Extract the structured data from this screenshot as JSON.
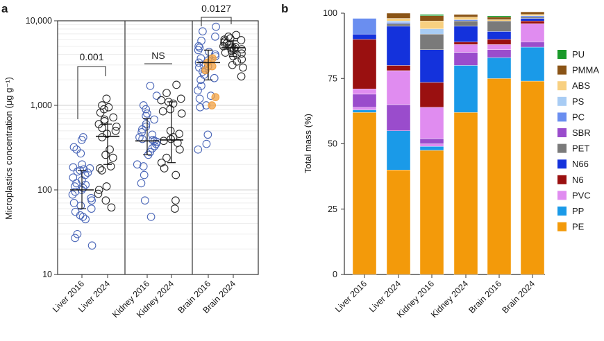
{
  "chart_data": [
    {
      "panel_label": "a",
      "type": "scatter",
      "ylabel": "Microplastics concentration (μg g⁻¹)",
      "yscale": "log",
      "ylim": [
        10,
        10000
      ],
      "ytick_labels": [
        "10",
        "100",
        "1,000",
        "10,000"
      ],
      "ytick_values": [
        10,
        100,
        1000,
        10000
      ],
      "categories": [
        "Liver 2016",
        "Liver 2024",
        "Kidney 2016",
        "Kidney 2024",
        "Brain 2016",
        "Brain 2024"
      ],
      "series": [
        {
          "name": "Liver 2016",
          "edge": "#4a66b8",
          "median": 100,
          "q1": 60,
          "q3": 170,
          "values": [
            390,
            420,
            320,
            300,
            270,
            200,
            185,
            180,
            175,
            170,
            165,
            160,
            150,
            140,
            130,
            120,
            115,
            110,
            105,
            100,
            95,
            88,
            80,
            75,
            70,
            65,
            60,
            55,
            50,
            48,
            45,
            30,
            27,
            22
          ]
        },
        {
          "name": "Liver 2024",
          "edge": "#2a2a2a",
          "median": 430,
          "q1": 200,
          "q3": 600,
          "values": [
            1200,
            1000,
            950,
            900,
            820,
            720,
            680,
            650,
            600,
            560,
            540,
            500,
            460,
            420,
            300,
            260,
            240,
            190,
            180,
            170,
            110,
            100,
            90,
            75,
            62
          ]
        },
        {
          "name": "Kidney 2016",
          "edge": "#4a66b8",
          "median": 380,
          "q1": 260,
          "q3": 700,
          "values": [
            1700,
            1300,
            1000,
            900,
            800,
            750,
            680,
            600,
            560,
            520,
            480,
            450,
            420,
            400,
            390,
            380,
            370,
            350,
            330,
            310,
            280,
            260,
            200,
            190,
            150,
            120,
            75,
            48
          ]
        },
        {
          "name": "Kidney 2024",
          "edge": "#2a2a2a",
          "median": 390,
          "q1": 210,
          "q3": 1100,
          "values": [
            1750,
            1400,
            1200,
            1150,
            1100,
            1050,
            900,
            850,
            800,
            500,
            460,
            420,
            400,
            380,
            360,
            300,
            240,
            210,
            180,
            150,
            75,
            60
          ]
        },
        {
          "name": "Brain 2016",
          "edge": "#4a66b8",
          "median": 3200,
          "q1": 2000,
          "q3": 4500,
          "values": [
            8500,
            7500,
            6500,
            5800,
            5000,
            4800,
            4500,
            4300,
            4000,
            3800,
            3600,
            3400,
            3200,
            3000,
            2900,
            2800,
            2600,
            2500,
            2300,
            2100,
            2000,
            1700,
            1500,
            1300,
            1200,
            1000,
            950,
            450,
            350,
            300
          ],
          "highlight": {
            "color": "#f2a040",
            "values": [
              3600,
              3200,
              2900,
              2600,
              1250,
              1000
            ]
          }
        },
        {
          "name": "Brain 2024",
          "edge": "#2a2a2a",
          "median": 4800,
          "q1": 3800,
          "q3": 5800,
          "values": [
            6800,
            6500,
            6200,
            6000,
            5900,
            5700,
            5500,
            5400,
            5200,
            5000,
            4900,
            4850,
            4800,
            4700,
            4600,
            4500,
            4400,
            4200,
            4100,
            4000,
            3800,
            3500,
            3300,
            3000,
            2800,
            2200
          ]
        }
      ],
      "comparisons": [
        {
          "groups": [
            "Liver 2016",
            "Liver 2024"
          ],
          "label": "0.001"
        },
        {
          "groups": [
            "Kidney 2016",
            "Kidney 2024"
          ],
          "label": "NS"
        },
        {
          "groups": [
            "Brain 2016",
            "Brain 2024"
          ],
          "label": "0.0127"
        }
      ]
    },
    {
      "panel_label": "b",
      "type": "bar",
      "stacked": true,
      "ylabel": "Total mass (%)",
      "ylim": [
        0,
        100
      ],
      "ytick_values": [
        0,
        25,
        50,
        75,
        100
      ],
      "categories": [
        "Liver 2016",
        "Liver 2024",
        "Kidney 2016",
        "Kidney 2024",
        "Brain 2016",
        "Brain 2024"
      ],
      "series": [
        {
          "name": "PE",
          "color": "#f39a0a",
          "values": [
            62,
            40,
            47.5,
            62,
            75,
            74
          ]
        },
        {
          "name": "PP",
          "color": "#1a9ae8",
          "values": [
            1,
            15,
            1.5,
            18,
            8,
            13
          ]
        },
        {
          "name": "PVC",
          "color": "#e08cf0",
          "values": [
            1,
            0,
            1,
            0,
            0,
            0
          ]
        },
        {
          "name": "SBR",
          "color": "#9a4ccc",
          "values": [
            5,
            10,
            2,
            5,
            3,
            2
          ]
        },
        {
          "name": "PVC",
          "color": "#e08cf0",
          "values": [
            2,
            13,
            12,
            3,
            2,
            7
          ]
        },
        {
          "name": "N6",
          "color": "#9a1010",
          "values": [
            19,
            2,
            9.5,
            1,
            2,
            1
          ]
        },
        {
          "name": "N66",
          "color": "#1432dc",
          "values": [
            2,
            15,
            12.5,
            6,
            3,
            1
          ]
        },
        {
          "name": "PET",
          "color": "#7a7a7a",
          "values": [
            0,
            1,
            6,
            2,
            4,
            0.5
          ]
        },
        {
          "name": "PC",
          "color": "#6a8ef0",
          "values": [
            6,
            0.5,
            0,
            0.5,
            0,
            0.5
          ]
        },
        {
          "name": "PS",
          "color": "#a8ccf4",
          "values": [
            0,
            0.5,
            2,
            0,
            0,
            0
          ]
        },
        {
          "name": "ABS",
          "color": "#f8d080",
          "values": [
            0,
            1,
            3,
            1,
            0.5,
            0.5
          ]
        },
        {
          "name": "PMMA",
          "color": "#8a5416",
          "values": [
            0,
            2,
            2,
            1,
            1,
            1
          ]
        },
        {
          "name": "PU",
          "color": "#1a9a2a",
          "values": [
            0,
            0,
            0.5,
            0,
            0.5,
            0
          ]
        }
      ],
      "legend": [
        "PU",
        "PMMA",
        "ABS",
        "PS",
        "PC",
        "SBR",
        "PET",
        "N66",
        "N6",
        "PVC",
        "PP",
        "PE"
      ],
      "legend_colors": {
        "PU": "#1a9a2a",
        "PMMA": "#8a5416",
        "ABS": "#f8d080",
        "PS": "#a8ccf4",
        "PC": "#6a8ef0",
        "SBR": "#9a4ccc",
        "PET": "#7a7a7a",
        "N66": "#1432dc",
        "N6": "#9a1010",
        "PVC": "#e08cf0",
        "PP": "#1a9ae8",
        "PE": "#f39a0a"
      }
    }
  ]
}
